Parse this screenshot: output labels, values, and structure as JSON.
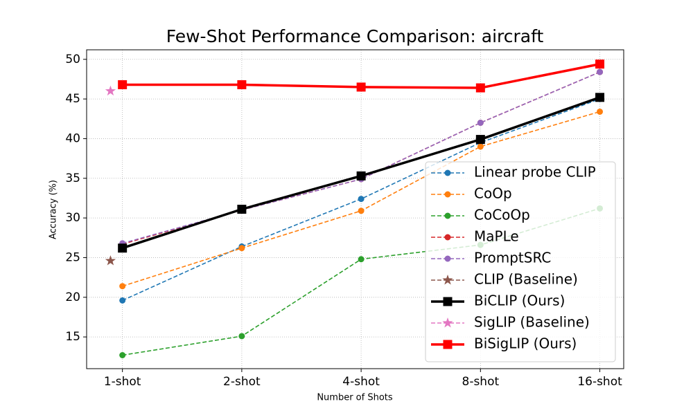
{
  "chart_data": {
    "type": "line",
    "title": "Few-Shot Performance Comparison: aircraft",
    "xlabel": "Number of Shots",
    "ylabel": "Accuracy (%)",
    "xlim": [
      -0.3,
      4.2
    ],
    "xticks": [
      {
        "value": 0,
        "label": "1-shot"
      },
      {
        "value": 1,
        "label": "2-shot"
      },
      {
        "value": 2,
        "label": "4-shot"
      },
      {
        "value": 3,
        "label": "8-shot"
      },
      {
        "value": 4,
        "label": "16-shot"
      }
    ],
    "ylim": [
      11,
      51.2
    ],
    "yticks": [
      15,
      20,
      25,
      30,
      35,
      40,
      45,
      50
    ],
    "grid": true,
    "legend": "lower right",
    "series": [
      {
        "name": "Linear probe CLIP",
        "color": "#1f77b4",
        "linestyle": "dashed",
        "marker": "circle",
        "x": [
          0,
          1,
          2,
          3,
          4
        ],
        "values": [
          19.6,
          26.4,
          32.4,
          39.5,
          45.0
        ]
      },
      {
        "name": "CoOp",
        "color": "#ff7f0e",
        "linestyle": "dashed",
        "marker": "circle",
        "x": [
          0,
          1,
          2,
          3,
          4
        ],
        "values": [
          21.4,
          26.2,
          30.9,
          39.0,
          43.4
        ]
      },
      {
        "name": "CoCoOp",
        "color": "#2ca02c",
        "linestyle": "dashed",
        "marker": "circle",
        "x": [
          0,
          1,
          2,
          3,
          4
        ],
        "values": [
          12.7,
          15.1,
          24.8,
          26.6,
          31.2
        ]
      },
      {
        "name": "MaPLe",
        "color": "#d62728",
        "linestyle": "dashed",
        "marker": "circle",
        "x": [
          0,
          1,
          2,
          3,
          4
        ],
        "values": [
          26.7,
          31.0,
          34.9,
          42.0,
          48.4
        ]
      },
      {
        "name": "PromptSRC",
        "color": "#9467bd",
        "linestyle": "dashed",
        "marker": "circle",
        "x": [
          0,
          1,
          2,
          3,
          4
        ],
        "values": [
          26.8,
          31.0,
          34.9,
          42.0,
          48.4
        ]
      },
      {
        "name": "CLIP (Baseline)",
        "color": "#8c564b",
        "linestyle": "dashed",
        "marker": "star",
        "x": [
          -0.1
        ],
        "values": [
          24.6
        ]
      },
      {
        "name": "BiCLIP (Ours)",
        "color": "#000000",
        "linestyle": "solid",
        "marker": "square",
        "x": [
          0,
          1,
          2,
          3,
          4
        ],
        "values": [
          26.2,
          31.1,
          35.3,
          39.9,
          45.2
        ]
      },
      {
        "name": "SigLIP (Baseline)",
        "color": "#e377c2",
        "linestyle": "dashed",
        "marker": "star",
        "x": [
          -0.1
        ],
        "values": [
          46.0
        ]
      },
      {
        "name": "BiSigLIP (Ours)",
        "color": "#ff0000",
        "linestyle": "solid",
        "marker": "square",
        "x": [
          0,
          1,
          2,
          3,
          4
        ],
        "values": [
          46.8,
          46.8,
          46.5,
          46.4,
          49.4
        ]
      }
    ]
  }
}
